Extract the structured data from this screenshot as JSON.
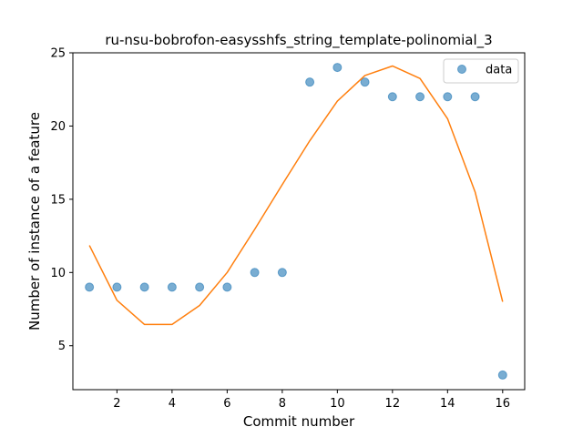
{
  "chart_data": {
    "type": "scatter",
    "title": "ru-nsu-bobrofon-easysshfs_string_template-polinomial_3",
    "xlabel": "Commit number",
    "ylabel": "Number of instance of a feature",
    "xlim": [
      0.4,
      16.8
    ],
    "ylim": [
      2.0,
      25.0
    ],
    "xticks": [
      2,
      4,
      6,
      8,
      10,
      12,
      14,
      16
    ],
    "yticks": [
      5,
      10,
      15,
      20,
      25
    ],
    "legend": {
      "position": "top-right",
      "entries": [
        "data"
      ]
    },
    "grid": false,
    "series": [
      {
        "name": "data",
        "kind": "scatter",
        "color": "#1f77b4",
        "x": [
          1,
          2,
          3,
          4,
          5,
          6,
          7,
          8,
          9,
          10,
          11,
          12,
          13,
          14,
          15,
          16
        ],
        "y": [
          9,
          9,
          9,
          9,
          9,
          9,
          10,
          10,
          23,
          24,
          23,
          22,
          22,
          22,
          22,
          3
        ]
      },
      {
        "kind": "line",
        "color": "#ff7f0e",
        "x": [
          1,
          2,
          3,
          4,
          5,
          6,
          7,
          8,
          9,
          10,
          11,
          12,
          13,
          14,
          15,
          16
        ],
        "y": [
          11.85,
          8.1,
          6.45,
          6.45,
          7.75,
          10.0,
          12.95,
          16.0,
          19.0,
          21.7,
          23.45,
          24.1,
          23.25,
          20.5,
          15.5,
          8.0
        ]
      }
    ]
  }
}
